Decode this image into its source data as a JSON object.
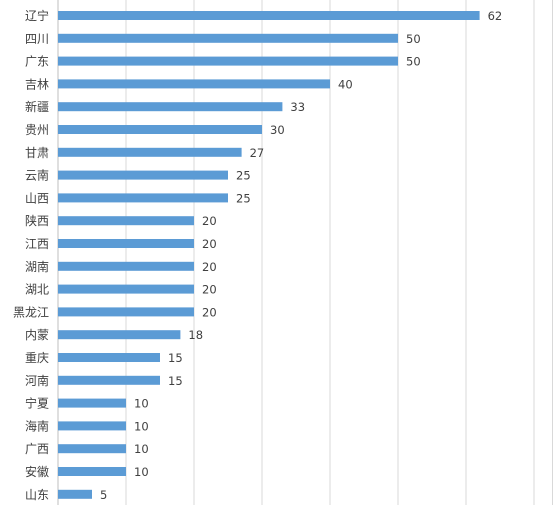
{
  "chart_data": {
    "type": "bar",
    "orientation": "horizontal",
    "title": "",
    "xlabel": "",
    "ylabel": "",
    "categories": [
      "辽宁",
      "四川",
      "广东",
      "吉林",
      "新疆",
      "贵州",
      "甘肃",
      "云南",
      "山西",
      "陕西",
      "江西",
      "湖南",
      "湖北",
      "黑龙江",
      "内蒙",
      "重庆",
      "河南",
      "宁夏",
      "海南",
      "广西",
      "安徽",
      "山东"
    ],
    "values": [
      62,
      50,
      50,
      40,
      33,
      30,
      27,
      25,
      25,
      20,
      20,
      20,
      20,
      20,
      18,
      15,
      15,
      10,
      10,
      10,
      10,
      5
    ],
    "xlim": [
      0,
      70
    ],
    "grid": true,
    "data_labels": true,
    "bar_color": "#5b9bd5"
  }
}
